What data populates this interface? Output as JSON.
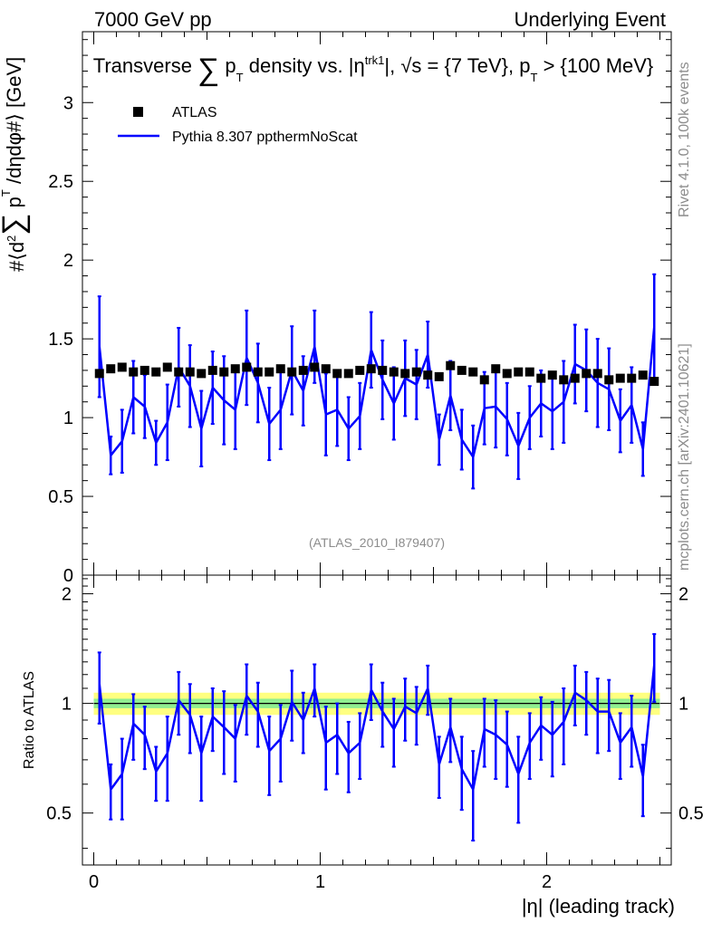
{
  "header": {
    "left": "7000 GeV pp",
    "right": "Underlying Event"
  },
  "side_labels": {
    "rivet": "Rivet 4.1.0,  100k events",
    "mcplots": "mcplots.cern.ch [arXiv:2401.10621]"
  },
  "analysis_ref": "(ATLAS_2010_I879407)",
  "chart_data": [
    {
      "type": "scatter",
      "title": "Transverse ∑ p_T density vs. |η^trk1|, √s = {7 TeV}, p_T > {100 MeV}",
      "xlabel": "|η| (leading track)",
      "ylabel": "#⟨d² ∑ p_T /dηdφ#⟩ [GeV]",
      "xlim": [
        -0.05,
        2.55
      ],
      "ylim": [
        0,
        3.45
      ],
      "y_ticks": [
        "0",
        "0.5",
        "1",
        "1.5",
        "2",
        "2.5",
        "3"
      ],
      "x_ticks": [
        "0",
        "1",
        "2"
      ],
      "legend": [
        {
          "name": "ATLAS",
          "marker": "square",
          "color": "#000000"
        },
        {
          "name": "Pythia 8.307 ppthermNoScat",
          "marker": "line",
          "color": "#0000ff"
        }
      ],
      "x": [
        0.025,
        0.075,
        0.125,
        0.175,
        0.225,
        0.275,
        0.325,
        0.375,
        0.425,
        0.475,
        0.525,
        0.575,
        0.625,
        0.675,
        0.725,
        0.775,
        0.825,
        0.875,
        0.925,
        0.975,
        1.025,
        1.075,
        1.125,
        1.175,
        1.225,
        1.275,
        1.325,
        1.375,
        1.425,
        1.475,
        1.525,
        1.575,
        1.625,
        1.675,
        1.725,
        1.775,
        1.825,
        1.875,
        1.925,
        1.975,
        2.025,
        2.075,
        2.125,
        2.175,
        2.225,
        2.275,
        2.325,
        2.375,
        2.425,
        2.475
      ],
      "series": [
        {
          "name": "ATLAS",
          "values": [
            1.28,
            1.31,
            1.32,
            1.29,
            1.3,
            1.29,
            1.32,
            1.29,
            1.29,
            1.28,
            1.3,
            1.29,
            1.31,
            1.32,
            1.29,
            1.29,
            1.31,
            1.29,
            1.3,
            1.32,
            1.31,
            1.28,
            1.28,
            1.3,
            1.31,
            1.3,
            1.29,
            1.28,
            1.29,
            1.27,
            1.26,
            1.33,
            1.3,
            1.29,
            1.24,
            1.31,
            1.28,
            1.29,
            1.29,
            1.25,
            1.27,
            1.24,
            1.25,
            1.28,
            1.28,
            1.24,
            1.25,
            1.25,
            1.27,
            1.23
          ]
        },
        {
          "name": "Pythia 8.307 ppthermNoScat",
          "values": [
            1.45,
            0.76,
            0.85,
            1.13,
            1.07,
            0.84,
            0.97,
            1.32,
            1.2,
            0.93,
            1.19,
            1.11,
            1.05,
            1.38,
            1.22,
            0.96,
            1.05,
            1.3,
            1.17,
            1.45,
            1.02,
            1.05,
            0.93,
            1.01,
            1.43,
            1.24,
            1.09,
            1.25,
            1.21,
            1.4,
            0.86,
            1.14,
            0.86,
            0.75,
            1.06,
            1.07,
            0.99,
            0.82,
            1.0,
            1.09,
            1.04,
            1.1,
            1.34,
            1.3,
            1.22,
            1.18,
            0.98,
            1.08,
            0.8,
            1.58
          ],
          "yerr": [
            0.32,
            0.12,
            0.2,
            0.23,
            0.2,
            0.14,
            0.24,
            0.25,
            0.26,
            0.24,
            0.23,
            0.28,
            0.25,
            0.3,
            0.25,
            0.23,
            0.25,
            0.28,
            0.22,
            0.23,
            0.26,
            0.23,
            0.2,
            0.21,
            0.24,
            0.25,
            0.23,
            0.24,
            0.22,
            0.21,
            0.16,
            0.22,
            0.19,
            0.2,
            0.23,
            0.26,
            0.23,
            0.21,
            0.2,
            0.21,
            0.24,
            0.26,
            0.25,
            0.26,
            0.28,
            0.26,
            0.2,
            0.24,
            0.17,
            0.33
          ]
        }
      ]
    },
    {
      "type": "line",
      "ylabel": "Ratio to ATLAS",
      "xlabel": "|η| (leading track)",
      "xlim": [
        -0.05,
        2.55
      ],
      "ylim": [
        0.36,
        2.25
      ],
      "y_ticks": [
        "0.5",
        "1",
        "2"
      ],
      "x_ticks": [
        "0",
        "1",
        "2"
      ],
      "band_inner_halfwidth": 0.03,
      "band_outer_halfwidth": 0.07,
      "series": [
        {
          "name": "Pythia 8.307 ppthermNoScat / ATLAS",
          "values": [
            1.13,
            0.58,
            0.64,
            0.88,
            0.82,
            0.65,
            0.73,
            1.02,
            0.93,
            0.73,
            0.92,
            0.86,
            0.8,
            1.05,
            0.95,
            0.74,
            0.8,
            1.01,
            0.9,
            1.1,
            0.78,
            0.82,
            0.73,
            0.78,
            1.09,
            0.95,
            0.85,
            0.98,
            0.94,
            1.1,
            0.68,
            0.86,
            0.66,
            0.58,
            0.85,
            0.82,
            0.77,
            0.64,
            0.78,
            0.87,
            0.82,
            0.89,
            1.07,
            1.02,
            0.95,
            0.95,
            0.78,
            0.86,
            0.63,
            1.28
          ],
          "yerr": [
            0.25,
            0.1,
            0.16,
            0.18,
            0.16,
            0.11,
            0.19,
            0.2,
            0.2,
            0.19,
            0.18,
            0.22,
            0.19,
            0.23,
            0.19,
            0.18,
            0.19,
            0.22,
            0.17,
            0.18,
            0.2,
            0.18,
            0.16,
            0.16,
            0.19,
            0.19,
            0.18,
            0.19,
            0.17,
            0.17,
            0.13,
            0.17,
            0.15,
            0.16,
            0.18,
            0.2,
            0.18,
            0.17,
            0.16,
            0.17,
            0.19,
            0.21,
            0.2,
            0.2,
            0.22,
            0.21,
            0.16,
            0.19,
            0.14,
            0.27
          ]
        }
      ]
    }
  ]
}
